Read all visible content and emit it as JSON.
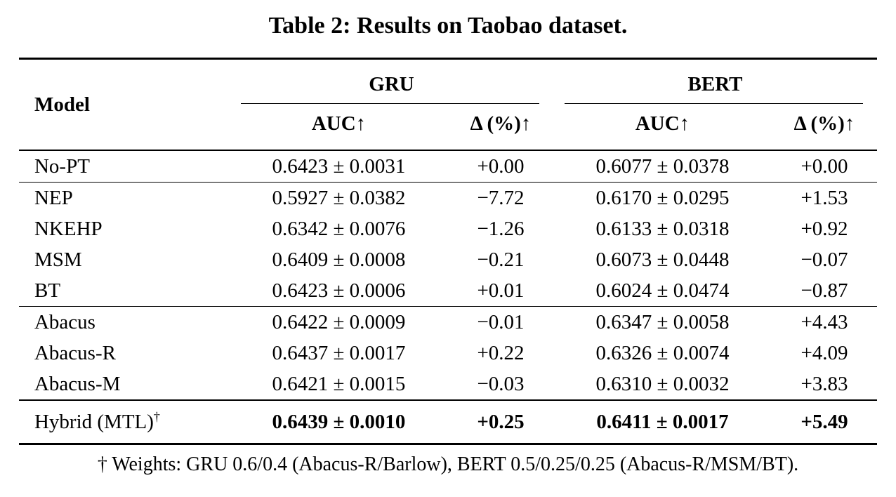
{
  "caption": "Table 2: Results on Taobao dataset.",
  "table": {
    "header": {
      "model": "Model",
      "groups": [
        {
          "label": "GRU"
        },
        {
          "label": "BERT"
        }
      ],
      "auc": "AUC",
      "delta": "Δ (%)",
      "arrow": "↑"
    },
    "rows": [
      {
        "model": "No-PT",
        "gru_auc": "0.6423 ± 0.0031",
        "gru_delta": "+0.00",
        "bert_auc": "0.6077 ± 0.0378",
        "bert_delta": "+0.00"
      },
      {
        "model": "NEP",
        "gru_auc": "0.5927 ± 0.0382",
        "gru_delta": "−7.72",
        "bert_auc": "0.6170 ± 0.0295",
        "bert_delta": "+1.53"
      },
      {
        "model": "NKEHP",
        "gru_auc": "0.6342 ± 0.0076",
        "gru_delta": "−1.26",
        "bert_auc": "0.6133 ± 0.0318",
        "bert_delta": "+0.92"
      },
      {
        "model": "MSM",
        "gru_auc": "0.6409 ± 0.0008",
        "gru_delta": "−0.21",
        "bert_auc": "0.6073 ± 0.0448",
        "bert_delta": "−0.07"
      },
      {
        "model": "BT",
        "gru_auc": "0.6423 ± 0.0006",
        "gru_delta": "+0.01",
        "bert_auc": "0.6024 ± 0.0474",
        "bert_delta": "−0.87"
      },
      {
        "model": "Abacus",
        "gru_auc": "0.6422 ± 0.0009",
        "gru_delta": "−0.01",
        "bert_auc": "0.6347 ± 0.0058",
        "bert_delta": "+4.43"
      },
      {
        "model": "Abacus-R",
        "gru_auc": "0.6437 ± 0.0017",
        "gru_delta": "+0.22",
        "bert_auc": "0.6326 ± 0.0074",
        "bert_delta": "+4.09"
      },
      {
        "model": "Abacus-M",
        "gru_auc": "0.6421 ± 0.0015",
        "gru_delta": "−0.03",
        "bert_auc": "0.6310 ± 0.0032",
        "bert_delta": "+3.83"
      },
      {
        "model": "Hybrid (MTL)",
        "sup": "†",
        "gru_auc": "0.6439 ± 0.0010",
        "gru_delta": "+0.25",
        "bert_auc": "0.6411 ± 0.0017",
        "bert_delta": "+5.49"
      }
    ],
    "footnote": "† Weights: GRU 0.6/0.4 (Abacus-R/Barlow), BERT 0.5/0.25/0.25 (Abacus-R/MSM/BT)."
  },
  "colors": {
    "text": "#000000",
    "background": "#ffffff",
    "rule": "#000000"
  }
}
